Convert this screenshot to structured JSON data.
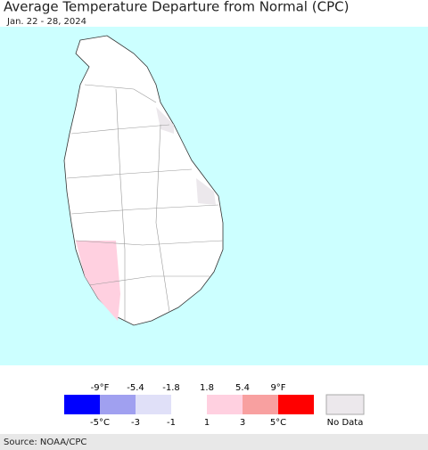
{
  "header": {
    "title": "Average Temperature Departure from Normal (CPC)",
    "subtitle": "Jan. 22 - 28, 2024"
  },
  "legend": {
    "colors": [
      "#0000ff",
      "#a0a0f0",
      "#e0e0f8",
      "#ffffff",
      "#ffd0e0",
      "#f8a0a0",
      "#ff0000"
    ],
    "f_labels": [
      "-9°F",
      "-5.4",
      "-1.8",
      "1.8",
      "5.4",
      "9°F"
    ],
    "c_labels": [
      "-5°C",
      "-3",
      "-1",
      "1",
      "3",
      "5°C"
    ],
    "no_data_color": "#ece8ec",
    "no_data": "No Data"
  },
  "source": "Source: NOAA/CPC"
}
